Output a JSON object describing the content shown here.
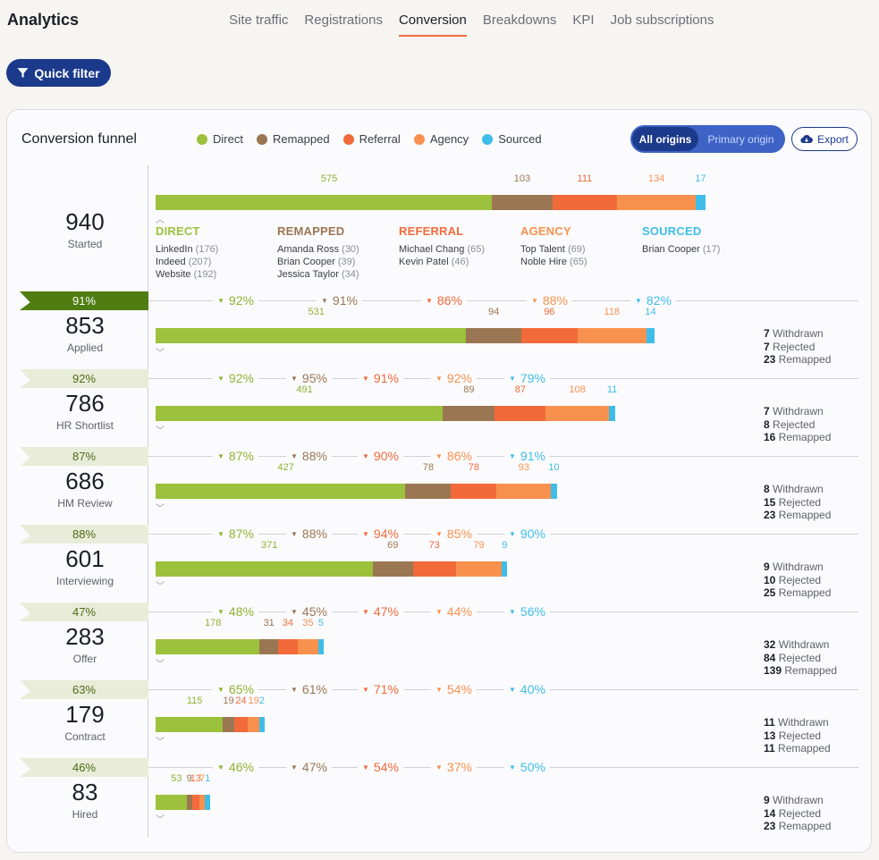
{
  "app": {
    "title": "Analytics"
  },
  "tabs": [
    {
      "label": "Site traffic",
      "active": false
    },
    {
      "label": "Registrations",
      "active": false
    },
    {
      "label": "Conversion",
      "active": true
    },
    {
      "label": "Breakdowns",
      "active": false
    },
    {
      "label": "KPI",
      "active": false
    },
    {
      "label": "Job subscriptions",
      "active": false
    }
  ],
  "quick_filter": {
    "label": "Quick filter",
    "icon": "filter-icon"
  },
  "card": {
    "title": "Conversion funnel",
    "legend": [
      {
        "label": "Direct",
        "color": "#9cc13c"
      },
      {
        "label": "Remapped",
        "color": "#9b7653"
      },
      {
        "label": "Referral",
        "color": "#f26a3a"
      },
      {
        "label": "Agency",
        "color": "#f9914e"
      },
      {
        "label": "Sourced",
        "color": "#3fbde8"
      }
    ],
    "origin_toggle": {
      "active": "All origins",
      "inactive": "Primary origin"
    },
    "export": {
      "label": "Export",
      "icon": "cloud-download-icon"
    }
  },
  "origin_breakdown": [
    {
      "title": "DIRECT",
      "color": "#9cc13c",
      "items": [
        {
          "name": "LinkedIn",
          "n": "(176)"
        },
        {
          "name": "Indeed",
          "n": "(207)"
        },
        {
          "name": "Website",
          "n": "(192)"
        }
      ]
    },
    {
      "title": "REMAPPED",
      "color": "#9b7653",
      "items": [
        {
          "name": "Amanda Ross",
          "n": "(30)"
        },
        {
          "name": "Brian Cooper",
          "n": "(39)"
        },
        {
          "name": "Jessica Taylor",
          "n": "(34)"
        }
      ]
    },
    {
      "title": "REFERRAL",
      "color": "#f26a3a",
      "items": [
        {
          "name": "Michael Chang",
          "n": "(65)"
        },
        {
          "name": "Kevin Patel",
          "n": "(46)"
        }
      ]
    },
    {
      "title": "AGENCY",
      "color": "#f9914e",
      "items": [
        {
          "name": "Top Talent",
          "n": "(69)"
        },
        {
          "name": "Noble Hire",
          "n": "(65)"
        }
      ]
    },
    {
      "title": "SOURCED",
      "color": "#3fbde8",
      "items": [
        {
          "name": "Brian Cooper",
          "n": "(17)"
        }
      ]
    }
  ],
  "chart_data": {
    "type": "bar",
    "series_names": [
      "Direct",
      "Remapped",
      "Referral",
      "Agency",
      "Sourced"
    ],
    "stages": [
      {
        "name": "Started",
        "total": "940",
        "values": [
          575,
          103,
          111,
          134,
          17
        ],
        "conversion": null,
        "stats": null
      },
      {
        "name": "Applied",
        "total": "853",
        "values": [
          531,
          94,
          96,
          118,
          14
        ],
        "conversion": "91%",
        "origin_pct": [
          "92%",
          "91%",
          "86%",
          "88%",
          "82%"
        ],
        "stats": {
          "withdrawn": "7",
          "rejected": "7",
          "remapped": "23"
        }
      },
      {
        "name": "HR Shortlist",
        "total": "786",
        "values": [
          491,
          89,
          87,
          108,
          11
        ],
        "conversion": "92%",
        "origin_pct": [
          "92%",
          "95%",
          "91%",
          "92%",
          "79%"
        ],
        "stats": {
          "withdrawn": "7",
          "rejected": "8",
          "remapped": "16"
        }
      },
      {
        "name": "HM Review",
        "total": "686",
        "values": [
          427,
          78,
          78,
          93,
          10
        ],
        "conversion": "87%",
        "origin_pct": [
          "87%",
          "88%",
          "90%",
          "86%",
          "91%"
        ],
        "stats": {
          "withdrawn": "8",
          "rejected": "15",
          "remapped": "23"
        }
      },
      {
        "name": "Interviewing",
        "total": "601",
        "values": [
          371,
          69,
          73,
          79,
          9
        ],
        "conversion": "88%",
        "origin_pct": [
          "87%",
          "88%",
          "94%",
          "85%",
          "90%"
        ],
        "stats": {
          "withdrawn": "9",
          "rejected": "10",
          "remapped": "25"
        }
      },
      {
        "name": "Offer",
        "total": "283",
        "values": [
          178,
          31,
          34,
          35,
          5
        ],
        "conversion": "47%",
        "origin_pct": [
          "48%",
          "45%",
          "47%",
          "44%",
          "56%"
        ],
        "stats": {
          "withdrawn": "32",
          "rejected": "84",
          "remapped": "139"
        }
      },
      {
        "name": "Contract",
        "total": "179",
        "values": [
          115,
          19,
          24,
          19,
          2
        ],
        "conversion": "63%",
        "origin_pct": [
          "65%",
          "61%",
          "71%",
          "54%",
          "40%"
        ],
        "stats": {
          "withdrawn": "11",
          "rejected": "13",
          "remapped": "11"
        }
      },
      {
        "name": "Hired",
        "total": "83",
        "values": [
          53,
          9,
          13,
          7,
          1
        ],
        "conversion": "46%",
        "origin_pct": [
          "46%",
          "47%",
          "54%",
          "37%",
          "50%"
        ],
        "stats": {
          "withdrawn": "9",
          "rejected": "14",
          "remapped": "23"
        }
      }
    ],
    "stats_labels": {
      "withdrawn": "Withdrawn",
      "rejected": "Rejected",
      "remapped": "Remapped"
    }
  }
}
